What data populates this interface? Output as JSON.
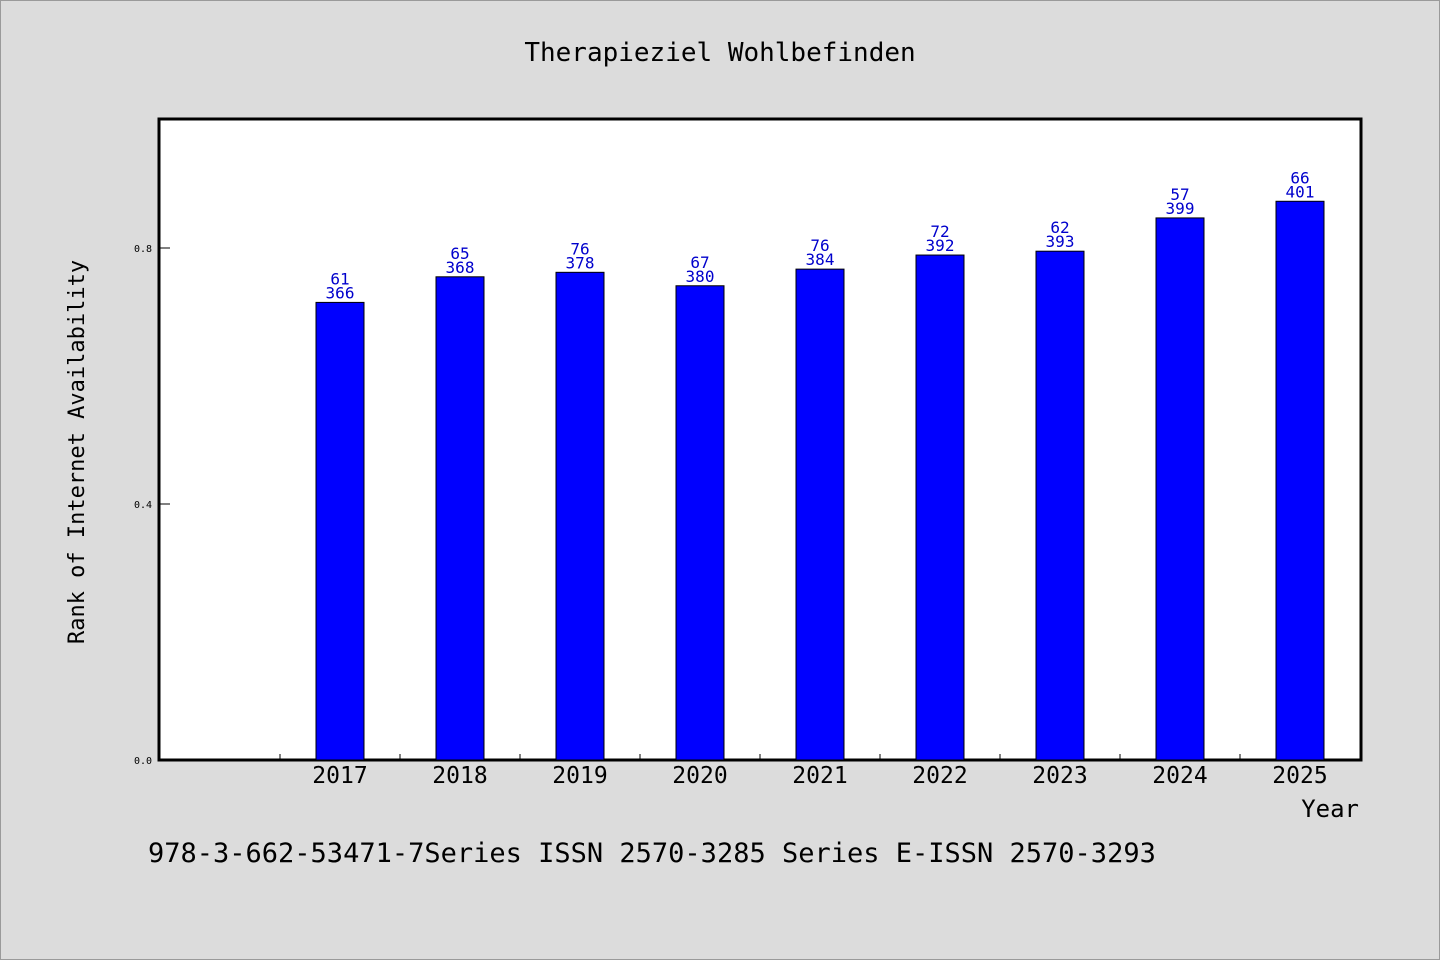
{
  "chart_data": {
    "type": "bar",
    "title": "Therapieziel Wohlbefinden",
    "xlabel": "Year",
    "ylabel": "Rank of Internet Availability",
    "categories": [
      "2017",
      "2018",
      "2019",
      "2020",
      "2021",
      "2022",
      "2023",
      "2024",
      "2025"
    ],
    "values": [
      0.715,
      0.755,
      0.762,
      0.741,
      0.767,
      0.789,
      0.795,
      0.847,
      0.873
    ],
    "labels_top": [
      "61",
      "65",
      "76",
      "67",
      "76",
      "72",
      "62",
      "57",
      "66"
    ],
    "labels_bottom": [
      "366",
      "368",
      "378",
      "380",
      "384",
      "392",
      "393",
      "399",
      "401"
    ],
    "ylim": [
      0,
      1.0
    ],
    "yticks": [
      0.0,
      0.4,
      0.8
    ],
    "ytick_labels": [
      "0.0",
      "0.4",
      "0.8"
    ],
    "grid": false,
    "colors": {
      "bar": "#0000ff",
      "label": "#0000cc",
      "background": "#dcdcdc",
      "plot_background": "#ffffff"
    }
  },
  "footer": "978-3-662-53471-7Series ISSN 2570-3285 Series E-ISSN 2570-3293"
}
